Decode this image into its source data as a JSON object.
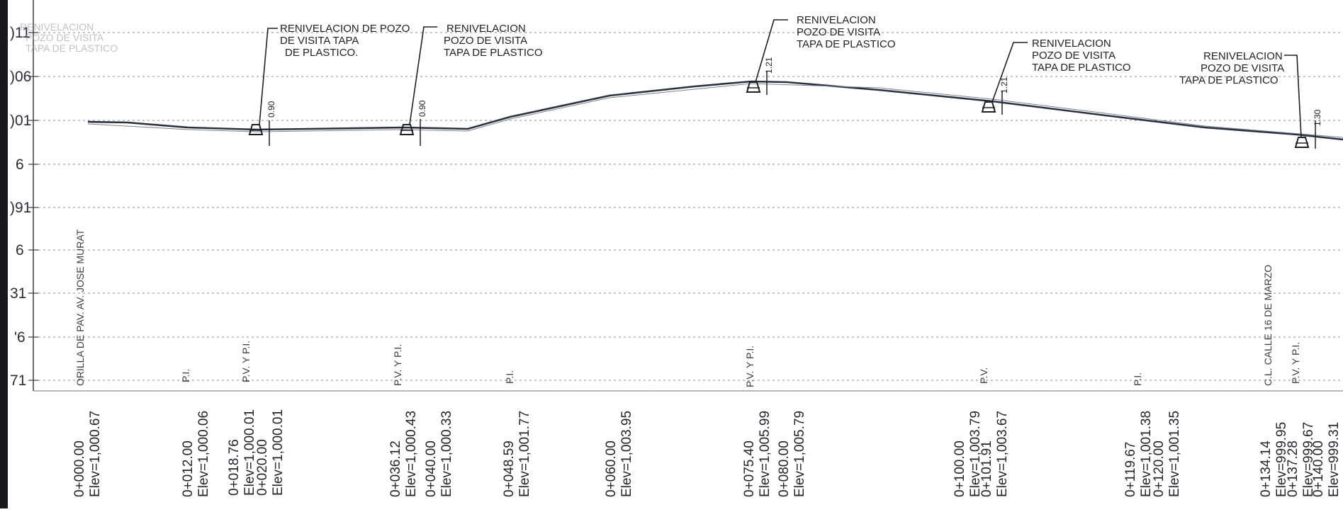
{
  "y_axis_labels": [
    ")11",
    ")06",
    ")01",
    "6",
    ")91",
    "6",
    "31",
    "'6",
    "71"
  ],
  "header_scribble": {
    "lines": [
      "RENIVELACION",
      "POZO DE VISITA",
      "TAPA DE PLASTICO"
    ]
  },
  "profile": {
    "grade_points": [
      {
        "station": "0+000.00",
        "elev": 1000.67
      },
      {
        "station": "0+012.00",
        "elev": 1000.06
      },
      {
        "station": "0+018.76",
        "elev": 1000.01
      },
      {
        "station": "0+020.00",
        "elev": 1000.01
      },
      {
        "station": "0+036.12",
        "elev": 1000.43
      },
      {
        "station": "0+040.00",
        "elev": 1000.33
      },
      {
        "station": "0+048.59",
        "elev": 1001.77
      },
      {
        "station": "0+060.00",
        "elev": 1003.95
      },
      {
        "station": "0+075.40",
        "elev": 1005.99
      },
      {
        "station": "0+080.00",
        "elev": 1005.79
      },
      {
        "station": "0+100.00",
        "elev": 1003.79
      },
      {
        "station": "0+101.91",
        "elev": 1003.67
      },
      {
        "station": "0+119.67",
        "elev": 1001.38
      },
      {
        "station": "0+120.00",
        "elev": 1001.35
      },
      {
        "station": "0+134.14",
        "elev": 999.95
      },
      {
        "station": "0+137.28",
        "elev": 999.67
      },
      {
        "station": "0+140.00",
        "elev": 999.31
      }
    ]
  },
  "manholes": [
    {
      "id": "mh1",
      "callout": [
        "RENIVELACION  DE POZO",
        "DE VISITA TAPA",
        "DE PLASTICO."
      ],
      "depth": "0.90"
    },
    {
      "id": "mh2",
      "callout": [
        "RENIVELACION",
        "POZO DE VISITA",
        "TAPA DE PLASTICO"
      ],
      "depth": "0.90"
    },
    {
      "id": "mh3",
      "callout": [
        "RENIVELACION",
        "POZO DE VISITA",
        "TAPA DE PLASTICO"
      ],
      "depth": "1.21"
    },
    {
      "id": "mh4",
      "callout": [
        "RENIVELACION",
        "POZO DE VISITA",
        "TAPA DE PLASTICO"
      ],
      "depth": "1.21"
    },
    {
      "id": "mh5",
      "callout": [
        "RENIVELACION",
        "POZO DE VISITA",
        "TAPA DE PLASTICO"
      ],
      "depth": "1.30"
    }
  ],
  "point_labels": [
    "ORILLA  DE  PAV.  AV.  JOSE  MURAT",
    "P.I.",
    "P.V.  Y  P.I.",
    "P.V.  Y  P.I.",
    "P.I.",
    "P.V.  Y  P.I.",
    "P.V.",
    "P.I.",
    "C.L.  CALLE  16  DE  MARZO",
    "P.V.  Y  P.I."
  ],
  "station_labels": [
    {
      "sta": "0+000.00",
      "elev": "Elev=1,000.67"
    },
    {
      "sta": "0+012.00",
      "elev": "Elev=1,000.06"
    },
    {
      "sta": "0+018.76",
      "elev": "Elev=1,000.01"
    },
    {
      "sta": "0+020.00",
      "elev": "Elev=1,000.01"
    },
    {
      "sta": "0+036.12",
      "elev": "Elev=1,000.43"
    },
    {
      "sta": "0+040.00",
      "elev": "Elev=1,000.33"
    },
    {
      "sta": "0+048.59",
      "elev": "Elev=1,001.77"
    },
    {
      "sta": "0+060.00",
      "elev": "Elev=1,003.95"
    },
    {
      "sta": "0+075.40",
      "elev": "Elev=1,005.99"
    },
    {
      "sta": "0+080.00",
      "elev": "Elev=1,005.79"
    },
    {
      "sta": "0+100.00",
      "elev": "Elev=1,003.79"
    },
    {
      "sta": "0+101.91",
      "elev": "Elev=1,003.67"
    },
    {
      "sta": "0+119.67",
      "elev": "Elev=1,001.38"
    },
    {
      "sta": "0+120.00",
      "elev": "Elev=1,001.35"
    },
    {
      "sta": "0+134.14",
      "elev": "Elev=999.95"
    },
    {
      "sta": "0+137.28",
      "elev": "Elev=999.67"
    },
    {
      "sta": "0+140.00",
      "elev": "Elev=999.31"
    }
  ],
  "colors": {
    "ink": "#1f2126",
    "grid": "#8a8d93",
    "paper": "#ffffff"
  }
}
